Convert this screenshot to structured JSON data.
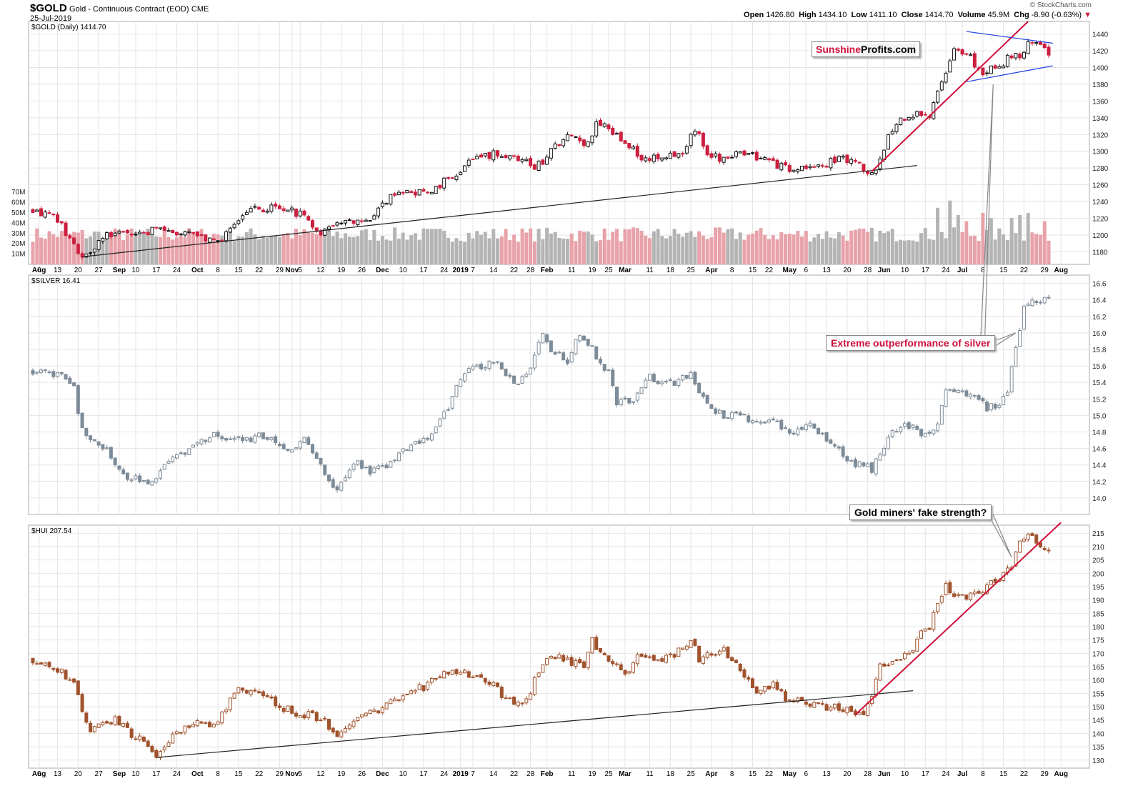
{
  "header": {
    "symbol": "$GOLD",
    "description": "Gold - Continuous Contract (EOD)",
    "exchange": "CME",
    "date": "25-Jul-2019",
    "copyright": "© StockCharts.com",
    "open_label": "Open",
    "open": "1426.80",
    "high_label": "High",
    "high": "1434.10",
    "low_label": "Low",
    "low": "1411.10",
    "close_label": "Close",
    "close": "1414.70",
    "volume_label": "Volume",
    "volume": "45.9M",
    "chg_label": "Chg",
    "chg": "-8.90 (-0.63%)"
  },
  "annotations": {
    "brand_part1": "Sunshine",
    "brand_part2": "Profits.com",
    "silver_callout": "Extreme outperformance of silver",
    "hui_callout": "Gold miners' fake strength?"
  },
  "colors": {
    "up_gold": "#111111",
    "down_gold": "#cc1f3f",
    "silver": "#7d8b98",
    "hui": "#a0522d",
    "trend_red": "#d0103a",
    "trend_blue": "#1f3fe0",
    "vol_up": "#b4b4b4",
    "vol_down": "#e8a2aa",
    "grid": "#e4e4e4"
  },
  "x_axis": {
    "ticks": [
      {
        "label": "Aug",
        "bold": true,
        "i": 1.5
      },
      {
        "label": "6",
        "i": 1.5
      },
      {
        "label": "13",
        "i": 6
      },
      {
        "label": "20",
        "i": 11
      },
      {
        "label": "27",
        "i": 16
      },
      {
        "label": "Sep",
        "bold": true,
        "i": 21
      },
      {
        "label": "10",
        "i": 25
      },
      {
        "label": "17",
        "i": 30
      },
      {
        "label": "24",
        "i": 35
      },
      {
        "label": "Oct",
        "bold": true,
        "i": 40
      },
      {
        "label": "8",
        "i": 45
      },
      {
        "label": "15",
        "i": 50
      },
      {
        "label": "22",
        "i": 55
      },
      {
        "label": "29",
        "i": 60
      },
      {
        "label": "Nov",
        "bold": true,
        "i": 63
      },
      {
        "label": "5",
        "i": 65
      },
      {
        "label": "12",
        "i": 70
      },
      {
        "label": "19",
        "i": 75
      },
      {
        "label": "26",
        "i": 80
      },
      {
        "label": "Dec",
        "bold": true,
        "i": 85
      },
      {
        "label": "10",
        "i": 90
      },
      {
        "label": "17",
        "i": 95
      },
      {
        "label": "24",
        "i": 100
      },
      {
        "label": "2019",
        "bold": true,
        "i": 104
      },
      {
        "label": "7",
        "i": 107
      },
      {
        "label": "14",
        "i": 112
      },
      {
        "label": "22",
        "i": 117
      },
      {
        "label": "28",
        "i": 121
      },
      {
        "label": "Feb",
        "bold": true,
        "i": 125
      },
      {
        "label": "11",
        "i": 131
      },
      {
        "label": "19",
        "i": 136
      },
      {
        "label": "25",
        "i": 140
      },
      {
        "label": "Mar",
        "bold": true,
        "i": 144
      },
      {
        "label": "11",
        "i": 150
      },
      {
        "label": "18",
        "i": 155
      },
      {
        "label": "25",
        "i": 160
      },
      {
        "label": "Apr",
        "bold": true,
        "i": 165
      },
      {
        "label": "8",
        "i": 170
      },
      {
        "label": "15",
        "i": 175
      },
      {
        "label": "22",
        "i": 179
      },
      {
        "label": "May",
        "bold": true,
        "i": 184
      },
      {
        "label": "6",
        "i": 188
      },
      {
        "label": "13",
        "i": 193
      },
      {
        "label": "20",
        "i": 198
      },
      {
        "label": "28",
        "i": 203
      },
      {
        "label": "Jun",
        "bold": true,
        "i": 207
      },
      {
        "label": "10",
        "i": 212
      },
      {
        "label": "17",
        "i": 217
      },
      {
        "label": "24",
        "i": 222
      },
      {
        "label": "Jul",
        "bold": true,
        "i": 226
      },
      {
        "label": "8",
        "i": 231
      },
      {
        "label": "15",
        "i": 236
      },
      {
        "label": "22",
        "i": 241
      },
      {
        "label": "29",
        "i": 246
      },
      {
        "label": "Aug",
        "bold": true,
        "i": 250
      }
    ]
  },
  "chart_data": [
    {
      "type": "candlestick",
      "title": "$GOLD (Daily) 1414.70",
      "ylim": [
        1165,
        1455
      ],
      "yticks": [
        1180,
        1200,
        1220,
        1240,
        1260,
        1280,
        1300,
        1320,
        1340,
        1360,
        1380,
        1400,
        1420,
        1440
      ],
      "close_path": [
        [
          0,
          1232
        ],
        [
          6,
          1218
        ],
        [
          10,
          1188
        ],
        [
          12,
          1174
        ],
        [
          18,
          1202
        ],
        [
          24,
          1198
        ],
        [
          30,
          1206
        ],
        [
          38,
          1200
        ],
        [
          45,
          1190
        ],
        [
          52,
          1230
        ],
        [
          60,
          1233
        ],
        [
          66,
          1222
        ],
        [
          70,
          1205
        ],
        [
          76,
          1215
        ],
        [
          82,
          1222
        ],
        [
          88,
          1248
        ],
        [
          95,
          1250
        ],
        [
          101,
          1266
        ],
        [
          107,
          1290
        ],
        [
          113,
          1298
        ],
        [
          118,
          1292
        ],
        [
          122,
          1282
        ],
        [
          124,
          1288
        ],
        [
          126,
          1306
        ],
        [
          130,
          1318
        ],
        [
          134,
          1310
        ],
        [
          136,
          1322
        ],
        [
          137,
          1340
        ],
        [
          140,
          1326
        ],
        [
          144,
          1312
        ],
        [
          147,
          1296
        ],
        [
          150,
          1290
        ],
        [
          154,
          1295
        ],
        [
          158,
          1298
        ],
        [
          161,
          1325
        ],
        [
          164,
          1300
        ],
        [
          168,
          1290
        ],
        [
          172,
          1300
        ],
        [
          176,
          1292
        ],
        [
          180,
          1284
        ],
        [
          184,
          1280
        ],
        [
          188,
          1279
        ],
        [
          192,
          1283
        ],
        [
          196,
          1294
        ],
        [
          200,
          1284
        ],
        [
          203,
          1276
        ],
        [
          206,
          1286
        ],
        [
          208,
          1318
        ],
        [
          211,
          1335
        ],
        [
          215,
          1343
        ],
        [
          218,
          1345
        ],
        [
          221,
          1380
        ],
        [
          223,
          1410
        ],
        [
          225,
          1425
        ],
        [
          228,
          1412
        ],
        [
          231,
          1392
        ],
        [
          234,
          1400
        ],
        [
          237,
          1410
        ],
        [
          240,
          1416
        ],
        [
          242,
          1430
        ],
        [
          245,
          1424
        ],
        [
          247,
          1414.7
        ]
      ],
      "volume": {
        "label_ticks": [
          "10M",
          "20M",
          "30M",
          "40M",
          "50M",
          "60M",
          "70M"
        ],
        "ylim": [
          0,
          75
        ],
        "spikes": [
          [
            220,
            55
          ],
          [
            223,
            62
          ],
          [
            225,
            48
          ],
          [
            227,
            42
          ],
          [
            231,
            50
          ],
          [
            233,
            45
          ],
          [
            238,
            45
          ],
          [
            240,
            48
          ],
          [
            242,
            50
          ],
          [
            246,
            42
          ]
        ]
      },
      "trendlines": [
        {
          "name": "support",
          "color": "black",
          "from": [
            12,
            1174
          ],
          "to": [
            215,
            1283
          ]
        },
        {
          "name": "rally",
          "color": "red",
          "from": [
            204,
            1276
          ],
          "to": [
            242,
            1455
          ]
        },
        {
          "name": "triangle-top",
          "color": "blue",
          "from": [
            227,
            1443
          ],
          "to": [
            248,
            1429
          ]
        },
        {
          "name": "triangle-bottom",
          "color": "blue",
          "from": [
            227,
            1383
          ],
          "to": [
            248,
            1402
          ]
        }
      ]
    },
    {
      "type": "candlestick",
      "title": "$SILVER 16.41",
      "ylim": [
        13.8,
        16.7
      ],
      "yticks": [
        14.0,
        14.2,
        14.4,
        14.6,
        14.8,
        15.0,
        15.2,
        15.4,
        15.6,
        15.8,
        16.0,
        16.2,
        16.4,
        16.6
      ],
      "close_path": [
        [
          0,
          15.55
        ],
        [
          6,
          15.5
        ],
        [
          10,
          15.35
        ],
        [
          12,
          14.8
        ],
        [
          18,
          14.6
        ],
        [
          22,
          14.25
        ],
        [
          28,
          14.2
        ],
        [
          34,
          14.45
        ],
        [
          40,
          14.65
        ],
        [
          44,
          14.8
        ],
        [
          50,
          14.7
        ],
        [
          56,
          14.75
        ],
        [
          62,
          14.6
        ],
        [
          66,
          14.7
        ],
        [
          70,
          14.4
        ],
        [
          74,
          14.05
        ],
        [
          78,
          14.45
        ],
        [
          82,
          14.3
        ],
        [
          86,
          14.4
        ],
        [
          90,
          14.6
        ],
        [
          96,
          14.7
        ],
        [
          100,
          15.0
        ],
        [
          104,
          15.45
        ],
        [
          108,
          15.6
        ],
        [
          112,
          15.65
        ],
        [
          118,
          15.35
        ],
        [
          121,
          15.6
        ],
        [
          124,
          16.0
        ],
        [
          126,
          15.8
        ],
        [
          130,
          15.65
        ],
        [
          133,
          16.0
        ],
        [
          136,
          15.8
        ],
        [
          140,
          15.5
        ],
        [
          142,
          15.15
        ],
        [
          146,
          15.2
        ],
        [
          150,
          15.45
        ],
        [
          156,
          15.4
        ],
        [
          160,
          15.5
        ],
        [
          164,
          15.15
        ],
        [
          168,
          15.0
        ],
        [
          172,
          15.0
        ],
        [
          176,
          14.9
        ],
        [
          180,
          14.95
        ],
        [
          184,
          14.75
        ],
        [
          188,
          14.9
        ],
        [
          194,
          14.7
        ],
        [
          198,
          14.45
        ],
        [
          202,
          14.4
        ],
        [
          204,
          14.35
        ],
        [
          206,
          14.55
        ],
        [
          210,
          14.85
        ],
        [
          214,
          14.85
        ],
        [
          216,
          14.75
        ],
        [
          220,
          14.9
        ],
        [
          222,
          15.35
        ],
        [
          226,
          15.3
        ],
        [
          229,
          15.25
        ],
        [
          232,
          15.1
        ],
        [
          235,
          15.1
        ],
        [
          237,
          15.3
        ],
        [
          239,
          15.8
        ],
        [
          241,
          16.3
        ],
        [
          244,
          16.4
        ],
        [
          247,
          16.41
        ]
      ]
    },
    {
      "type": "candlestick",
      "title": "$HUI 207.54",
      "ylim": [
        127,
        218
      ],
      "yticks": [
        130,
        135,
        140,
        145,
        150,
        155,
        160,
        165,
        170,
        175,
        180,
        185,
        190,
        195,
        200,
        205,
        210,
        215
      ],
      "close_path": [
        [
          0,
          168
        ],
        [
          6,
          164
        ],
        [
          10,
          159
        ],
        [
          12,
          148
        ],
        [
          14,
          141
        ],
        [
          20,
          145
        ],
        [
          24,
          140
        ],
        [
          28,
          136
        ],
        [
          30,
          132
        ],
        [
          34,
          140
        ],
        [
          40,
          144
        ],
        [
          44,
          142
        ],
        [
          50,
          157
        ],
        [
          56,
          155
        ],
        [
          60,
          150
        ],
        [
          64,
          148
        ],
        [
          70,
          146
        ],
        [
          74,
          140
        ],
        [
          78,
          146
        ],
        [
          82,
          148
        ],
        [
          86,
          150
        ],
        [
          90,
          155
        ],
        [
          96,
          158
        ],
        [
          100,
          162
        ],
        [
          104,
          163
        ],
        [
          108,
          162
        ],
        [
          112,
          158
        ],
        [
          116,
          152
        ],
        [
          120,
          152
        ],
        [
          122,
          160
        ],
        [
          126,
          170
        ],
        [
          130,
          167
        ],
        [
          134,
          165
        ],
        [
          136,
          175
        ],
        [
          138,
          170
        ],
        [
          142,
          165
        ],
        [
          144,
          163
        ],
        [
          148,
          170
        ],
        [
          152,
          167
        ],
        [
          156,
          170
        ],
        [
          160,
          175
        ],
        [
          162,
          168
        ],
        [
          166,
          170
        ],
        [
          168,
          172
        ],
        [
          172,
          163
        ],
        [
          176,
          156
        ],
        [
          180,
          158
        ],
        [
          184,
          152
        ],
        [
          188,
          152
        ],
        [
          192,
          150
        ],
        [
          196,
          150
        ],
        [
          200,
          148
        ],
        [
          202,
          147
        ],
        [
          204,
          155
        ],
        [
          206,
          166
        ],
        [
          210,
          168
        ],
        [
          214,
          172
        ],
        [
          216,
          178
        ],
        [
          218,
          180
        ],
        [
          220,
          190
        ],
        [
          222,
          195
        ],
        [
          224,
          192
        ],
        [
          227,
          190
        ],
        [
          230,
          193
        ],
        [
          234,
          197
        ],
        [
          238,
          203
        ],
        [
          240,
          212
        ],
        [
          242,
          214
        ],
        [
          245,
          210
        ],
        [
          247,
          207.54
        ]
      ],
      "trendlines": [
        {
          "name": "support",
          "color": "black",
          "from": [
            30,
            131
          ],
          "to": [
            214,
            156
          ]
        },
        {
          "name": "rally",
          "color": "red",
          "from": [
            200,
            147
          ],
          "to": [
            250,
            219
          ]
        }
      ]
    }
  ]
}
